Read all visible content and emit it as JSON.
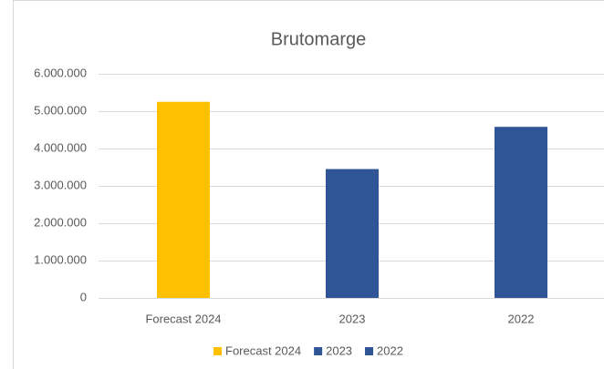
{
  "chart_data": {
    "type": "bar",
    "title": "Brutomarge",
    "categories": [
      "Forecast 2024",
      "2023",
      "2022"
    ],
    "series": [
      {
        "name": "Forecast 2024",
        "color": "#ffc000",
        "values": [
          5250000,
          null,
          null
        ]
      },
      {
        "name": "2023",
        "color": "#2f5597",
        "values": [
          null,
          3450000,
          null
        ]
      },
      {
        "name": "2022",
        "color": "#2f5597",
        "values": [
          null,
          null,
          4580000
        ]
      }
    ],
    "ylim": [
      0,
      6000000
    ],
    "yticks": [
      0,
      {
        "value": 1000000,
        "label": "1.000.000"
      },
      {
        "value": 2000000,
        "label": "2.000.000"
      },
      {
        "value": 3000000,
        "label": "3.000.000"
      },
      {
        "value": 4000000,
        "label": "4.000.000"
      },
      {
        "value": 5000000,
        "label": "5.000.000"
      },
      {
        "value": 6000000,
        "label": "6.000.000"
      }
    ],
    "grid": true,
    "legend": "bottom"
  }
}
